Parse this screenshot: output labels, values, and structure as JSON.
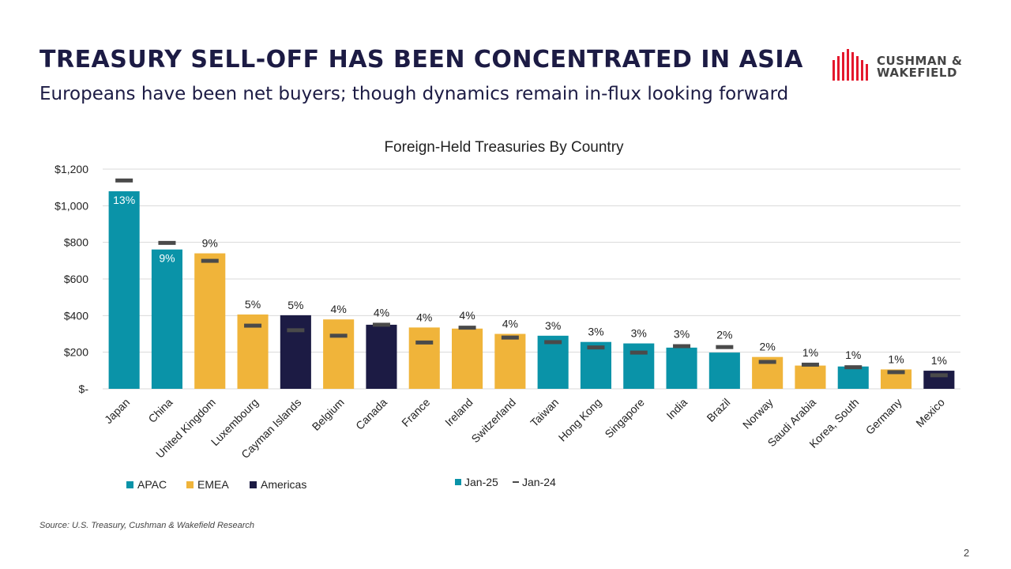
{
  "header": {
    "title": "TREASURY SELL-OFF HAS BEEN CONCENTRATED IN ASIA",
    "subtitle": "Europeans have been net buyers; though dynamics remain in-flux looking forward"
  },
  "logo": {
    "line1": "CUSHMAN &",
    "line2": "WAKEFIELD",
    "color": "#e4182c"
  },
  "footer": {
    "source": "Source: U.S. Treasury, Cushman & Wakefield Research",
    "page_number": "2"
  },
  "colors": {
    "APAC": "#0a93a8",
    "EMEA": "#f0b43a",
    "Americas": "#1c1b44",
    "marker": "#4a4a4a"
  },
  "chart_data": {
    "type": "bar",
    "title": "Foreign-Held Treasuries By Country",
    "ylim": [
      0,
      1200
    ],
    "yticks": [
      {
        "value": 0,
        "label": "$-"
      },
      {
        "value": 200,
        "label": "$200"
      },
      {
        "value": 400,
        "label": "$400"
      },
      {
        "value": 600,
        "label": "$600"
      },
      {
        "value": 800,
        "label": "$800"
      },
      {
        "value": 1000,
        "label": "$1,000"
      },
      {
        "value": 1200,
        "label": "$1,200"
      }
    ],
    "grid": true,
    "categories": [
      "Japan",
      "China",
      "United Kingdom",
      "Luxembourg",
      "Cayman Islands",
      "Belgium",
      "Canada",
      "France",
      "Ireland",
      "Switzerland",
      "Taiwan",
      "Hong Kong",
      "Singapore",
      "India",
      "Brazil",
      "Norway",
      "Saudi Arabia",
      "Korea, South",
      "Germany",
      "Mexico"
    ],
    "regions": [
      "APAC",
      "APAC",
      "EMEA",
      "EMEA",
      "Americas",
      "EMEA",
      "Americas",
      "EMEA",
      "EMEA",
      "EMEA",
      "APAC",
      "APAC",
      "APAC",
      "APAC",
      "APAC",
      "EMEA",
      "EMEA",
      "APAC",
      "EMEA",
      "Americas"
    ],
    "series": [
      {
        "name": "Jan-25",
        "type": "bar",
        "values": [
          1079,
          761,
          740,
          406,
          402,
          379,
          350,
          335,
          329,
          300,
          290,
          256,
          248,
          225,
          198,
          174,
          127,
          122,
          106,
          99
        ]
      },
      {
        "name": "Jan-24",
        "type": "marker",
        "values": [
          1138,
          797,
          699,
          345,
          320,
          290,
          350,
          253,
          334,
          280,
          255,
          226,
          198,
          233,
          228,
          147,
          132,
          118,
          91,
          74
        ]
      }
    ],
    "data_labels": [
      "13%",
      "9%",
      "9%",
      "5%",
      "5%",
      "4%",
      "4%",
      "4%",
      "4%",
      "4%",
      "3%",
      "3%",
      "3%",
      "3%",
      "2%",
      "2%",
      "1%",
      "1%",
      "1%",
      "1%"
    ],
    "labels_inside": [
      true,
      true,
      false,
      false,
      false,
      false,
      false,
      false,
      false,
      false,
      false,
      false,
      false,
      false,
      false,
      false,
      false,
      false,
      false,
      false
    ],
    "legend_regions": [
      "APAC",
      "EMEA",
      "Americas"
    ],
    "legend_series": [
      "Jan-25",
      "Jan-24"
    ],
    "legend_position": "bottom"
  }
}
